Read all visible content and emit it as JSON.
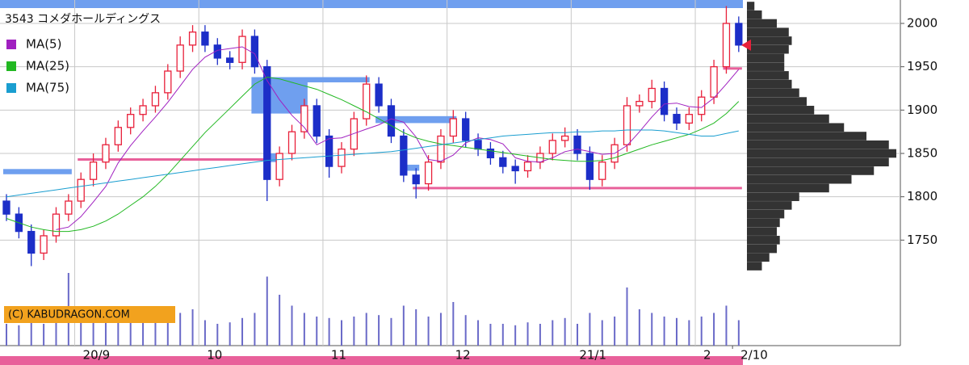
{
  "chart_data": {
    "type": "candlestick",
    "title": "3543 コメダホールディングス",
    "watermark": "(C) KABUDRAGON.COM",
    "ylim": [
      1700,
      2027
    ],
    "yticks": [
      1750,
      1800,
      1850,
      1900,
      1950,
      2000
    ],
    "grid": true,
    "legend": "top-left",
    "xticks": [
      {
        "value": 6,
        "label": "20/9"
      },
      {
        "value": 16,
        "label": "10"
      },
      {
        "value": 26,
        "label": "11"
      },
      {
        "value": 36,
        "label": "12"
      },
      {
        "value": 46,
        "label": "21/1"
      },
      {
        "value": 56,
        "label": "2"
      },
      {
        "value": 59,
        "label": "2/10"
      }
    ],
    "up_color": "#e8203a",
    "down_color": "#1c2ec8",
    "open": [
      1795,
      1780,
      1760,
      1735,
      1755,
      1780,
      1795,
      1820,
      1840,
      1860,
      1880,
      1895,
      1905,
      1920,
      1945,
      1975,
      1990,
      1975,
      1960,
      1955,
      1985,
      1950,
      1820,
      1850,
      1875,
      1905,
      1870,
      1835,
      1855,
      1890,
      1930,
      1905,
      1870,
      1825,
      1815,
      1840,
      1870,
      1890,
      1865,
      1855,
      1845,
      1835,
      1830,
      1840,
      1850,
      1865,
      1870,
      1850,
      1820,
      1840,
      1860,
      1905,
      1910,
      1925,
      1895,
      1885,
      1895,
      1915,
      1950,
      2000
    ],
    "high": [
      1803,
      1788,
      1768,
      1762,
      1788,
      1803,
      1828,
      1850,
      1868,
      1888,
      1903,
      1913,
      1928,
      1953,
      1985,
      1998,
      1998,
      1983,
      1968,
      1993,
      1993,
      1958,
      1858,
      1883,
      1913,
      1913,
      1878,
      1863,
      1898,
      1940,
      1938,
      1913,
      1878,
      1833,
      1848,
      1878,
      1900,
      1898,
      1873,
      1863,
      1853,
      1843,
      1848,
      1858,
      1873,
      1880,
      1878,
      1858,
      1848,
      1868,
      1915,
      1918,
      1935,
      1933,
      1903,
      1903,
      1923,
      1958,
      2020,
      2008
    ],
    "low": [
      1772,
      1752,
      1720,
      1727,
      1747,
      1772,
      1787,
      1812,
      1832,
      1852,
      1872,
      1887,
      1897,
      1912,
      1937,
      1967,
      1967,
      1952,
      1947,
      1947,
      1942,
      1795,
      1812,
      1842,
      1867,
      1862,
      1822,
      1827,
      1847,
      1882,
      1897,
      1862,
      1817,
      1798,
      1807,
      1832,
      1862,
      1857,
      1847,
      1837,
      1827,
      1815,
      1822,
      1832,
      1842,
      1857,
      1842,
      1808,
      1812,
      1832,
      1852,
      1897,
      1902,
      1887,
      1877,
      1877,
      1887,
      1907,
      1942,
      1967
    ],
    "close": [
      1780,
      1760,
      1735,
      1755,
      1780,
      1795,
      1820,
      1840,
      1860,
      1880,
      1895,
      1905,
      1920,
      1945,
      1975,
      1990,
      1975,
      1960,
      1955,
      1985,
      1950,
      1820,
      1850,
      1875,
      1905,
      1870,
      1835,
      1855,
      1890,
      1930,
      1905,
      1870,
      1825,
      1815,
      1840,
      1870,
      1890,
      1865,
      1855,
      1845,
      1835,
      1830,
      1840,
      1850,
      1865,
      1870,
      1850,
      1820,
      1840,
      1860,
      1905,
      1910,
      1925,
      1895,
      1885,
      1895,
      1915,
      1950,
      2000,
      1975
    ],
    "series": [
      {
        "name": "MA(5)",
        "color": "#a020c0",
        "values": [
          null,
          null,
          null,
          null,
          1762,
          1765,
          1777,
          1794,
          1812,
          1839,
          1859,
          1876,
          1892,
          1909,
          1928,
          1947,
          1961,
          1969,
          1971,
          1973,
          1965,
          1934,
          1912,
          1894,
          1880,
          1860,
          1867,
          1868,
          1873,
          1878,
          1883,
          1890,
          1886,
          1869,
          1843,
          1841,
          1848,
          1862,
          1868,
          1866,
          1861,
          1845,
          1841,
          1840,
          1845,
          1852,
          1855,
          1852,
          1849,
          1850,
          1859,
          1875,
          1892,
          1907,
          1908,
          1904,
          1903,
          1914,
          1930,
          1947
        ]
      },
      {
        "name": "MA(25)",
        "color": "#22b822",
        "values": [
          1775,
          1770,
          1765,
          1762,
          1760,
          1760,
          1762,
          1766,
          1772,
          1780,
          1790,
          1800,
          1812,
          1826,
          1842,
          1858,
          1874,
          1888,
          1902,
          1916,
          1930,
          1938,
          1936,
          1932,
          1928,
          1924,
          1918,
          1912,
          1905,
          1898,
          1890,
          1882,
          1874,
          1868,
          1864,
          1861,
          1859,
          1857,
          1855,
          1853,
          1851,
          1849,
          1847,
          1845,
          1843,
          1842,
          1841,
          1841,
          1842,
          1845,
          1850,
          1855,
          1860,
          1864,
          1868,
          1872,
          1878,
          1885,
          1896,
          1910
        ]
      },
      {
        "name": "MA(75)",
        "color": "#1a9ed0",
        "values": [
          1800,
          1802,
          1804,
          1806,
          1808,
          1810,
          1812,
          1814,
          1816,
          1818,
          1820,
          1822,
          1824,
          1826,
          1828,
          1830,
          1832,
          1834,
          1836,
          1838,
          1840,
          1842,
          1843,
          1844,
          1845,
          1846,
          1847,
          1848,
          1849,
          1850,
          1851,
          1852,
          1854,
          1856,
          1858,
          1860,
          1862,
          1864,
          1866,
          1868,
          1870,
          1871,
          1872,
          1873,
          1874,
          1874,
          1875,
          1875,
          1876,
          1876,
          1877,
          1877,
          1877,
          1876,
          1874,
          1872,
          1870,
          1870,
          1873,
          1876
        ]
      }
    ],
    "volume": {
      "color": "#6a6ac8",
      "lim": [
        0,
        100
      ],
      "values": [
        30,
        28,
        35,
        30,
        40,
        100,
        45,
        35,
        40,
        38,
        42,
        35,
        40,
        38,
        45,
        50,
        35,
        30,
        32,
        38,
        45,
        95,
        70,
        55,
        45,
        40,
        38,
        35,
        40,
        45,
        42,
        38,
        55,
        50,
        40,
        45,
        60,
        42,
        35,
        30,
        30,
        28,
        32,
        30,
        35,
        38,
        30,
        45,
        35,
        40,
        80,
        50,
        45,
        40,
        38,
        35,
        40,
        45,
        55,
        35
      ]
    },
    "volume_profile": {
      "color": "#333333",
      "lim": [
        0,
        100
      ],
      "prices": [
        1720,
        1730,
        1740,
        1750,
        1760,
        1770,
        1780,
        1790,
        1800,
        1810,
        1820,
        1830,
        1840,
        1850,
        1860,
        1870,
        1880,
        1890,
        1900,
        1910,
        1920,
        1930,
        1940,
        1950,
        1960,
        1970,
        1980,
        1990,
        2000,
        2010,
        2020
      ],
      "values": [
        10,
        15,
        20,
        22,
        20,
        22,
        25,
        30,
        35,
        55,
        70,
        85,
        95,
        100,
        95,
        80,
        65,
        55,
        45,
        40,
        35,
        30,
        28,
        25,
        25,
        28,
        30,
        28,
        20,
        10,
        5
      ]
    },
    "zones": {
      "color": "#6f9fef",
      "items": [
        {
          "start": 0,
          "end": 5,
          "low": 1826,
          "high": 1832
        },
        {
          "start": 20,
          "end": 29,
          "low": 1932,
          "high": 1938
        },
        {
          "start": 20,
          "end": 24,
          "low": 1896,
          "high": 1932
        },
        {
          "start": 21,
          "end": 22,
          "low": 1840,
          "high": 1850
        },
        {
          "start": 30,
          "end": 36,
          "low": 1885,
          "high": 1893
        },
        {
          "start": 32,
          "end": 33,
          "low": 1830,
          "high": 1837
        }
      ]
    },
    "support_lines": {
      "color": "#e8609a",
      "items": [
        {
          "start": 6,
          "end": 21,
          "price": 1843
        },
        {
          "start": 33,
          "end": 59,
          "price": 1810
        },
        {
          "start": 15,
          "end": 15,
          "price": 1985
        },
        {
          "start": 58,
          "end": 59,
          "price": 1948
        }
      ]
    }
  }
}
